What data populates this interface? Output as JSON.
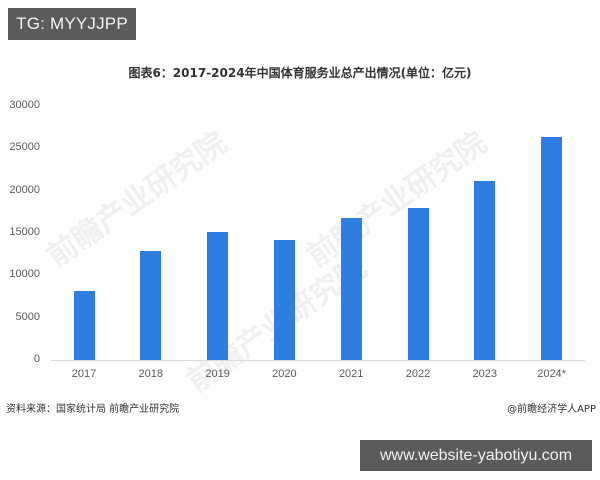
{
  "overlay": {
    "tg_label": "TG: MYYJJPP",
    "site_label": "www.website-yabotiyu.com"
  },
  "watermark": {
    "text": "前瞻产业研究院"
  },
  "footer": {
    "source": "资料来源：国家统计局 前瞻产业研究院",
    "credit": "@前瞻经济学人APP"
  },
  "colors": {
    "bar": "#2e7de0",
    "axis": "#d9d9d9",
    "badge_bg": "#5b5b5b"
  },
  "chart_data": {
    "type": "bar",
    "title": "图表6：2017-2024年中国体育服务业总产出情况(单位：亿元)",
    "xlabel": "",
    "ylabel": "",
    "categories": [
      "2017",
      "2018",
      "2019",
      "2020",
      "2021",
      "2022",
      "2023",
      "2024*"
    ],
    "values": [
      8100,
      12850,
      15100,
      14150,
      16800,
      17950,
      21200,
      26300
    ],
    "ylim": [
      0,
      30000
    ],
    "yticks": [
      "0",
      "5000",
      "10000",
      "15000",
      "20000",
      "25000",
      "30000"
    ],
    "grid": false,
    "legend": null
  }
}
